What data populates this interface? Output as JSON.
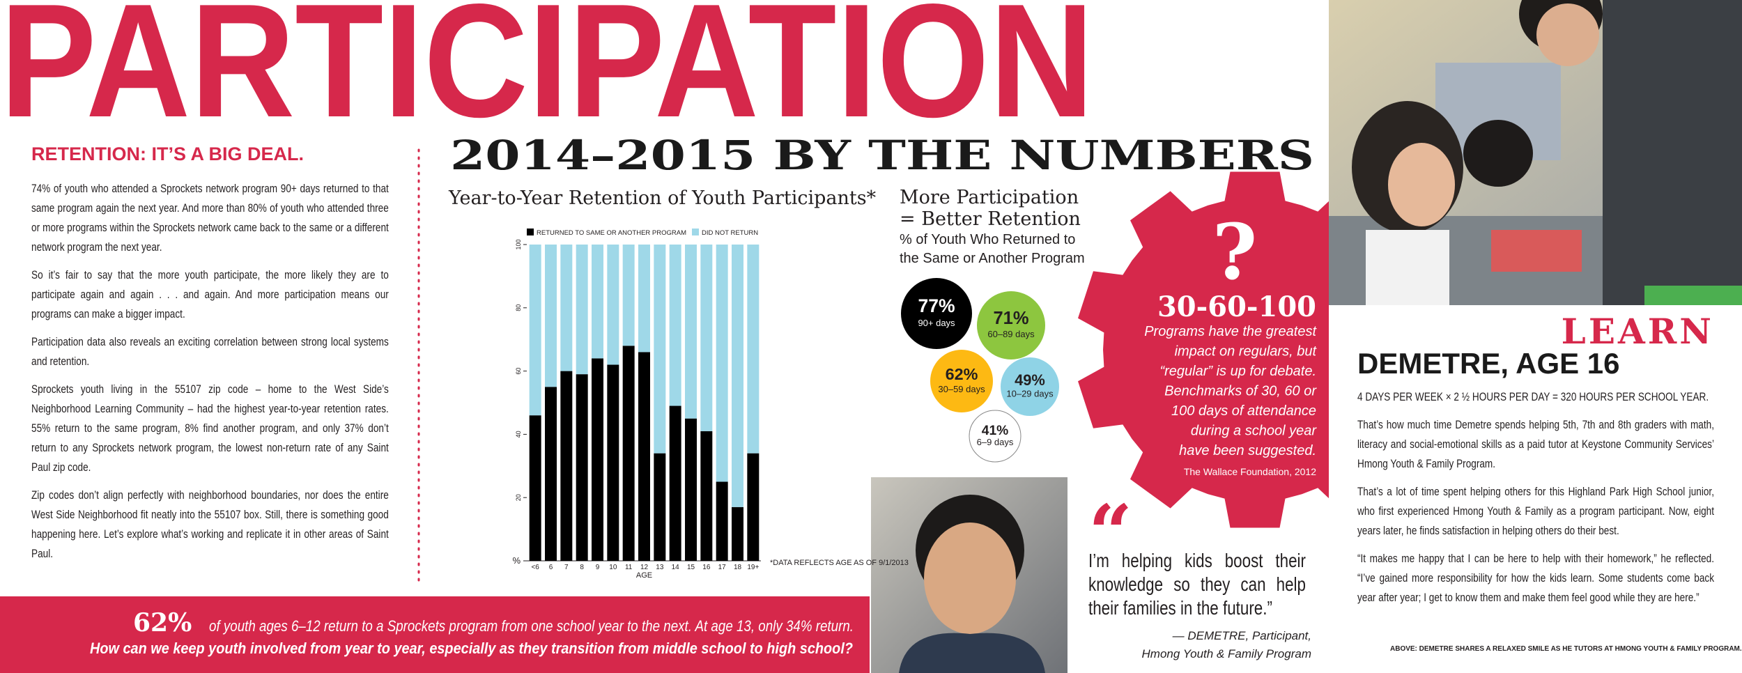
{
  "header": {
    "title": "PARTICIPATION"
  },
  "retention": {
    "heading": "RETENTION: IT’S A BIG DEAL.",
    "paragraphs": [
      "74% of youth who attended a Sprockets network program 90+ days returned to that same program again the next year. And more than 80% of youth who attended three or more programs within the Sprockets network came back to the same or a different network program the next year.",
      "So it’s fair to say that the more youth participate, the more likely they are to participate again and again . . . and again. And more participation means our programs can make a bigger impact.",
      "Participation data also reveals an exciting correlation between strong local systems and retention.",
      "Sprockets youth living in the 55107 zip code – home to the West Side’s Neighborhood Learning Community – had the highest year-to-year retention rates. 55% return to the same program, 8% find another program, and only 37% don’t return to any Sprockets network program, the lowest non-return rate of any Saint Paul zip code.",
      "Zip codes don’t align perfectly with neighborhood boundaries, nor does the entire West Side Neighborhood fit neatly into the 55107 box. Still, there is something good happening here. Let’s explore what’s working and replicate it in other areas of Saint Paul."
    ]
  },
  "numbers": {
    "title": "2014–2015 BY THE NUMBERS"
  },
  "chart_data": {
    "type": "bar",
    "stacked": true,
    "title": "Year-to-Year Retention of Youth Participants*",
    "categories": [
      "<6",
      "6",
      "7",
      "8",
      "9",
      "10",
      "11",
      "12",
      "13",
      "14",
      "15",
      "16",
      "17",
      "18",
      "19+"
    ],
    "series": [
      {
        "name": "RETURNED TO SAME OR ANOTHER PROGRAM",
        "color": "#000000",
        "values": [
          46,
          55,
          60,
          59,
          64,
          62,
          68,
          66,
          34,
          49,
          45,
          41,
          25,
          17,
          34
        ]
      },
      {
        "name": "DID NOT RETURN",
        "color": "#9fd8e8",
        "values": [
          54,
          45,
          40,
          41,
          36,
          38,
          32,
          34,
          66,
          51,
          55,
          59,
          75,
          83,
          66
        ]
      }
    ],
    "ylim": [
      0,
      100
    ],
    "yticks": [
      {
        "value": 0,
        "label": "%"
      },
      20,
      40,
      60,
      80,
      100
    ],
    "x_label": "AGE",
    "note": "*DATA REFLECTS AGE AS OF 9/1/2013"
  },
  "participation": {
    "title_lines": [
      "More Participation",
      "= Better Retention"
    ],
    "subtitle_lines": [
      "% of Youth Who Returned to",
      "the Same or Another Program"
    ],
    "circles": [
      {
        "value": "77%",
        "label": "90+ days",
        "color": "#000000",
        "text_color": "#ffffff"
      },
      {
        "value": "71%",
        "label": "60–89 days",
        "color": "#8dc63f",
        "text_color": "#231f20"
      },
      {
        "value": "62%",
        "label": "30–59 days",
        "color": "#fdb913",
        "text_color": "#231f20"
      },
      {
        "value": "49%",
        "label": "10–29 days",
        "color": "#8fd3e6",
        "text_color": "#231f20"
      },
      {
        "value": "41%",
        "label": "6–9 days",
        "color": "#ffffff",
        "text_color": "#231f20"
      }
    ]
  },
  "gear": {
    "symbol": "?",
    "title": "30-60-100",
    "lines": [
      "Programs have the greatest",
      "impact on regulars, but",
      "“regular” is up for debate.",
      "Benchmarks of 30, 60 or",
      "100 days of attendance",
      "during a school year",
      "have been suggested."
    ],
    "source": "The Wallace Foundation, 2012"
  },
  "quote": {
    "mark": "“",
    "text": "I’m helping kids boost their knowledge so they can help their families in the future.”",
    "attribution_lines": [
      "— DEMETRE, Participant,",
      "Hmong Youth & Family Program"
    ]
  },
  "banner": {
    "highlight": "62%",
    "line1": "of youth ages 6–12 return to a Sprockets program from one school year to the next. At age 13, only 34% return.",
    "line2": "How can we keep youth involved from year to year, especially as they transition from middle school to high school?"
  },
  "learn": {
    "kicker": "LEARN",
    "name": "DEMETRE, AGE 16",
    "paragraphs": [
      "4 DAYS PER WEEK × 2 ½ HOURS PER DAY = 320 HOURS PER SCHOOL YEAR.",
      "That’s how much time Demetre spends helping 5th, 7th and 8th graders with math, literacy and social-emotional skills as a paid tutor at Keystone Community Services’ Hmong Youth & Family Program.",
      "That’s a lot of time spent helping others for this Highland Park High School junior, who first experienced Hmong Youth & Family as a program participant. Now, eight years later, he finds satisfaction in helping others do their best.",
      "“It makes me happy that I can be here to help with their homework,” he reflected. “I’ve gained more responsibility for how the kids learn. Some students come back year after year; I get to know them and make them feel good while they are here.”"
    ],
    "caption": "ABOVE: DEMETRE SHARES A RELAXED SMILE AS HE TUTORS AT HMONG YOUTH & FAMILY PROGRAM."
  }
}
